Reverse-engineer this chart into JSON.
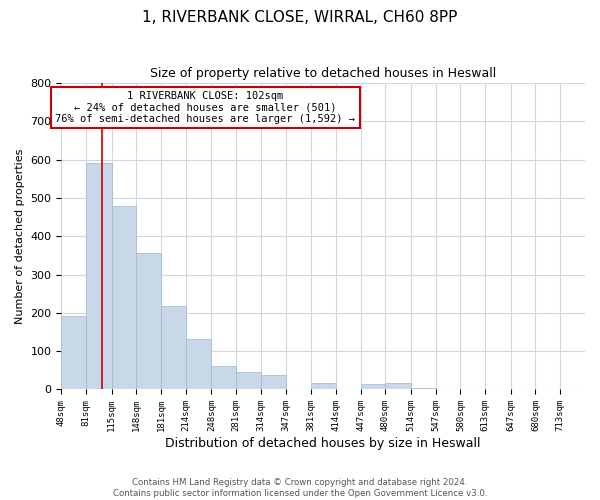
{
  "title": "1, RIVERBANK CLOSE, WIRRAL, CH60 8PP",
  "subtitle": "Size of property relative to detached houses in Heswall",
  "xlabel": "Distribution of detached houses by size in Heswall",
  "ylabel": "Number of detached properties",
  "bin_labels": [
    "48sqm",
    "81sqm",
    "115sqm",
    "148sqm",
    "181sqm",
    "214sqm",
    "248sqm",
    "281sqm",
    "314sqm",
    "347sqm",
    "381sqm",
    "414sqm",
    "447sqm",
    "480sqm",
    "514sqm",
    "547sqm",
    "580sqm",
    "613sqm",
    "647sqm",
    "680sqm",
    "713sqm"
  ],
  "bar_heights": [
    193,
    590,
    480,
    355,
    218,
    133,
    62,
    45,
    37,
    0,
    18,
    0,
    13,
    18,
    5,
    0,
    0,
    0,
    0,
    0,
    0
  ],
  "bar_color": "#c8d8e8",
  "bar_edgecolor": "#a0b8cc",
  "property_line_label": "1 RIVERBANK CLOSE: 102sqm",
  "annotation_line1": "← 24% of detached houses are smaller (501)",
  "annotation_line2": "76% of semi-detached houses are larger (1,592) →",
  "annotation_box_edgecolor": "#cc0000",
  "annotation_box_facecolor": "#ffffff",
  "vline_color": "#cc0000",
  "vline_x": 102,
  "ylim": [
    0,
    800
  ],
  "yticks": [
    0,
    100,
    200,
    300,
    400,
    500,
    600,
    700,
    800
  ],
  "bin_edges_values": [
    48,
    81,
    115,
    148,
    181,
    214,
    248,
    281,
    314,
    347,
    381,
    414,
    447,
    480,
    514,
    547,
    580,
    613,
    647,
    680,
    713,
    746
  ],
  "footer_line1": "Contains HM Land Registry data © Crown copyright and database right 2024.",
  "footer_line2": "Contains public sector information licensed under the Open Government Licence v3.0.",
  "background_color": "#ffffff",
  "grid_color": "#d0d8e8"
}
